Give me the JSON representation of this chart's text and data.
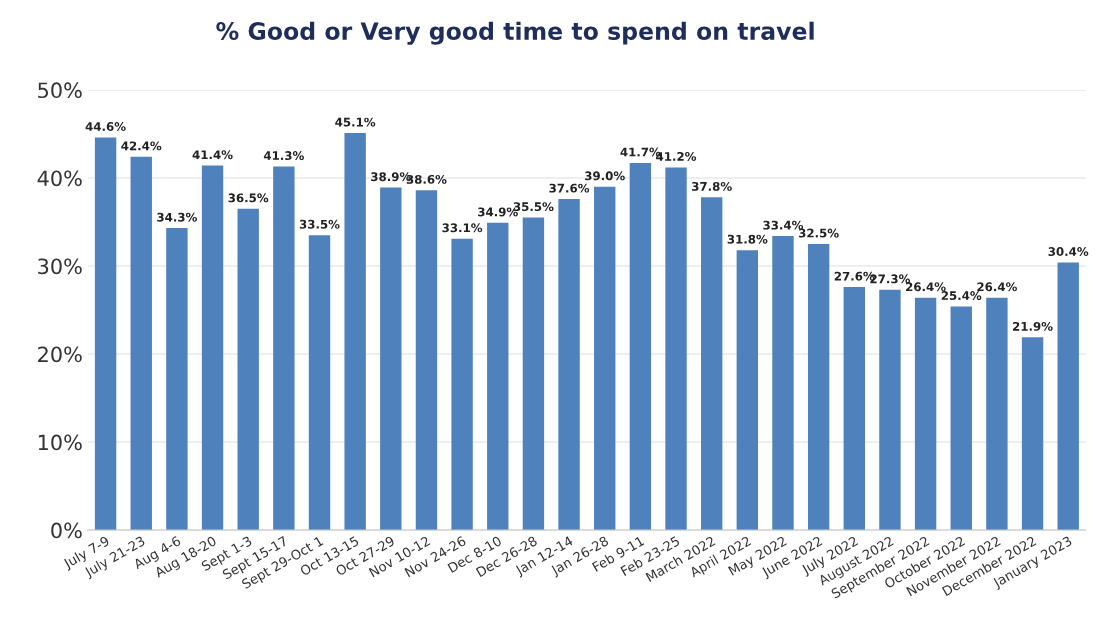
{
  "chart_data": {
    "type": "bar",
    "title": "% Good or Very good time to spend on travel",
    "categories": [
      "July 7-9",
      "July 21-23",
      "Aug 4-6",
      "Aug 18-20",
      "Sept 1-3",
      "Sept 15-17",
      "Sept 29-Oct 1",
      "Oct 13-15",
      "Oct 27-29",
      "Nov 10-12",
      "Nov 24-26",
      "Dec 8-10",
      "Dec 26-28",
      "Jan 12-14",
      "Jan 26-28",
      "Feb 9-11",
      "Feb 23-25",
      "March 2022",
      "April 2022",
      "May 2022",
      "June 2022",
      "July 2022",
      "August 2022",
      "September 2022",
      "October 2022",
      "November 2022",
      "December 2022",
      "January 2023"
    ],
    "values": [
      44.6,
      42.4,
      34.3,
      41.4,
      36.5,
      41.3,
      33.5,
      45.1,
      38.9,
      38.6,
      33.1,
      34.9,
      35.5,
      37.6,
      39.0,
      41.7,
      41.2,
      37.8,
      31.8,
      33.4,
      32.5,
      27.6,
      27.3,
      26.4,
      25.4,
      26.4,
      21.9,
      30.4
    ],
    "value_labels": [
      "44.6%",
      "42.4%",
      "34.3%",
      "41.4%",
      "36.5%",
      "41.3%",
      "33.5%",
      "45.1%",
      "38.9%",
      "38.6%",
      "33.1%",
      "34.9%",
      "35.5%",
      "37.6%",
      "39.0%",
      "41.7%",
      "41.2%",
      "37.8%",
      "31.8%",
      "33.4%",
      "32.5%",
      "27.6%",
      "27.3%",
      "26.4%",
      "25.4%",
      "26.4%",
      "21.9%",
      "30.4%"
    ],
    "color": "#4f81bd",
    "ylim": [
      0,
      50
    ],
    "yticks": [
      {
        "value": 0,
        "label": "0%"
      },
      {
        "value": 10,
        "label": "10%"
      },
      {
        "value": 20,
        "label": "20%"
      },
      {
        "value": 30,
        "label": "30%"
      },
      {
        "value": 40,
        "label": "40%"
      },
      {
        "value": 50,
        "label": "50%"
      }
    ],
    "grid": "y"
  }
}
